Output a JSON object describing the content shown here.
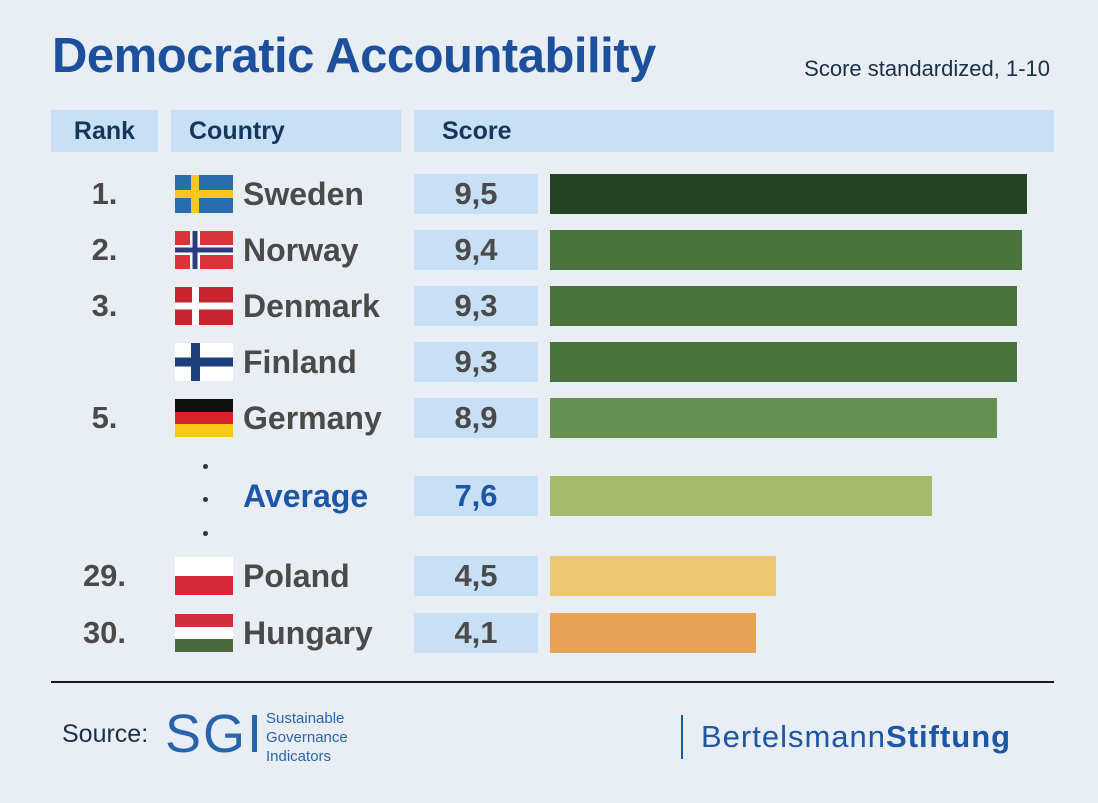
{
  "title": "Democratic Accountability",
  "subtitle": "Score standardized, 1-10",
  "headers": {
    "rank": "Rank",
    "country": "Country",
    "score": "Score"
  },
  "chart_data": {
    "type": "bar",
    "orientation": "horizontal",
    "title": "Democratic Accountability",
    "subtitle": "Score standardized, 1-10",
    "xlim": [
      0,
      10
    ],
    "rows": [
      {
        "rank": "1.",
        "country": "Sweden",
        "flag": "sweden-flag-icon",
        "score_label": "9,5",
        "value": 9.5,
        "color": "#234423"
      },
      {
        "rank": "2.",
        "country": "Norway",
        "flag": "norway-flag-icon",
        "score_label": "9,4",
        "value": 9.4,
        "color": "#4a733e"
      },
      {
        "rank": "3.",
        "country": "Denmark",
        "flag": "denmark-flag-icon",
        "score_label": "9,3",
        "value": 9.3,
        "color": "#4a733e"
      },
      {
        "rank": "",
        "country": "Finland",
        "flag": "finland-flag-icon",
        "score_label": "9,3",
        "value": 9.3,
        "color": "#4a733e"
      },
      {
        "rank": "5.",
        "country": "Germany",
        "flag": "germany-flag-icon",
        "score_label": "8,9",
        "value": 8.9,
        "color": "#64914f"
      },
      {
        "rank": "",
        "country": "Average",
        "flag": "",
        "score_label": "7,6",
        "value": 7.6,
        "color": "#a5bb69",
        "is_average": true
      },
      {
        "rank": "29.",
        "country": "Poland",
        "flag": "poland-flag-icon",
        "score_label": "4,5",
        "value": 4.5,
        "color": "#f0c874"
      },
      {
        "rank": "30.",
        "country": "Hungary",
        "flag": "hungary-flag-icon",
        "score_label": "4,1",
        "value": 4.1,
        "color": "#e9a158"
      }
    ]
  },
  "footer": {
    "source_label": "Source:",
    "sgi_logo": "SGI",
    "sgi_sub": [
      "Sustainable",
      "Governance",
      "Indicators"
    ],
    "publisher_light": "Bertelsmann",
    "publisher_bold": "Stiftung"
  }
}
